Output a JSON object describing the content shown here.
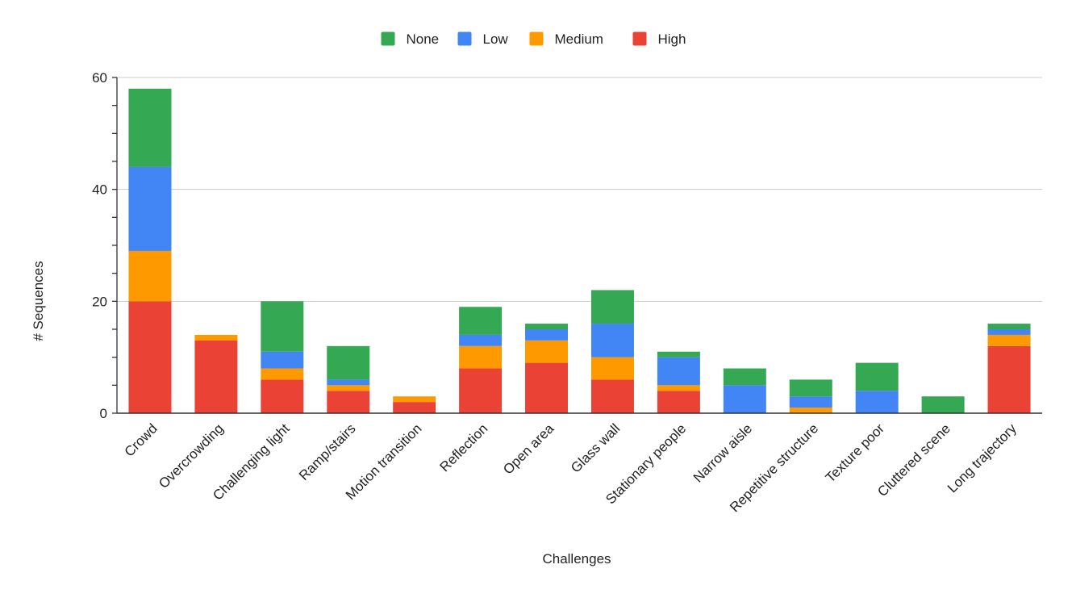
{
  "chart_data": {
    "type": "bar",
    "stacked": true,
    "xlabel": "Challenges",
    "ylabel": "# Sequences",
    "ylim": [
      0,
      60
    ],
    "yticks": [
      0,
      20,
      40,
      60
    ],
    "grid": true,
    "legend_position": "top-center",
    "categories": [
      "Crowd",
      "Overcrowding",
      "Challenging light",
      "Ramp/stairs",
      "Motion transition",
      "Reflection",
      "Open area",
      "Glass wall",
      "Stationary people",
      "Narrow aisle",
      "Repetitive structure",
      "Texture poor",
      "Cluttered scene",
      "Long trajectory"
    ],
    "series": [
      {
        "name": "High",
        "color": "#ea4335",
        "values": [
          20,
          13,
          6,
          4,
          2,
          8,
          9,
          6,
          4,
          0,
          0,
          0,
          0,
          12
        ]
      },
      {
        "name": "Medium",
        "color": "#ff9900",
        "values": [
          9,
          1,
          2,
          1,
          1,
          4,
          4,
          4,
          1,
          0,
          1,
          0,
          0,
          2
        ]
      },
      {
        "name": "Low",
        "color": "#4285f4",
        "values": [
          15,
          0,
          3,
          1,
          0,
          2,
          2,
          6,
          5,
          5,
          2,
          4,
          0,
          1
        ]
      },
      {
        "name": "None",
        "color": "#34a853",
        "values": [
          14,
          0,
          9,
          6,
          0,
          5,
          1,
          6,
          1,
          3,
          3,
          5,
          3,
          1
        ]
      }
    ],
    "legend_order": [
      "None",
      "Low",
      "Medium",
      "High"
    ]
  }
}
